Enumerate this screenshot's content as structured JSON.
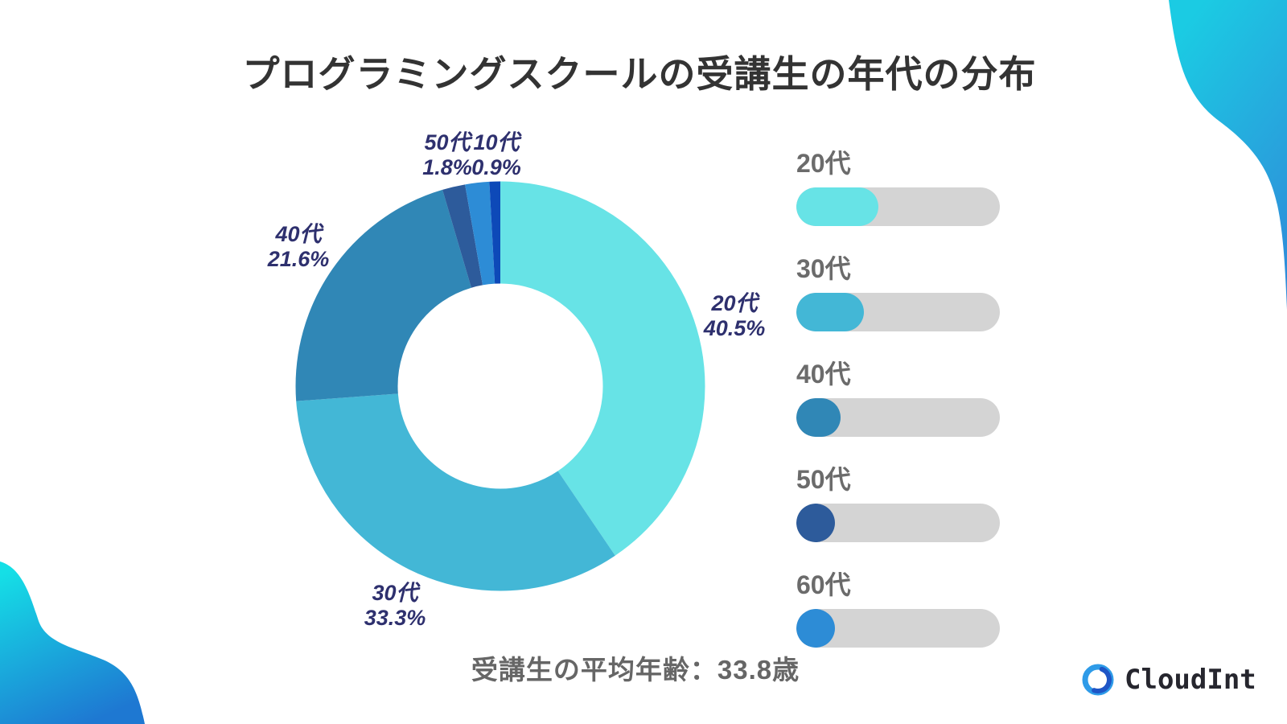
{
  "title": "プログラミングスクールの受講生の年代の分布",
  "average_note": "受講生の平均年齢：33.8歳",
  "brand": {
    "name": "CloudInt"
  },
  "chart_data": {
    "type": "pie",
    "donut": true,
    "direction": "clockwise",
    "start_angle_deg": 0,
    "title": "プログラミングスクールの受講生の年代の分布",
    "unit": "%",
    "slices": [
      {
        "label": "20代",
        "value": 40.5,
        "color": "#67E3E6",
        "labeled": true
      },
      {
        "label": "30代",
        "value": 33.3,
        "color": "#43B7D6",
        "labeled": true
      },
      {
        "label": "40代",
        "value": 21.6,
        "color": "#3087B6",
        "labeled": true
      },
      {
        "label": "50代",
        "value": 1.8,
        "color": "#2D5B9B",
        "labeled": true
      },
      {
        "label": "60代",
        "value": 1.9,
        "color": "#2D8CD6",
        "labeled": false
      },
      {
        "label": "10代",
        "value": 0.9,
        "color": "#0D49B8",
        "labeled": true
      }
    ],
    "legend": {
      "position": "right",
      "track_color": "#D4D4D4",
      "items": [
        {
          "label": "20代",
          "value": 40.5,
          "color": "#67E3E6"
        },
        {
          "label": "30代",
          "value": 33.3,
          "color": "#43B7D6"
        },
        {
          "label": "40代",
          "value": 21.6,
          "color": "#3087B6"
        },
        {
          "label": "50代",
          "value": 1.8,
          "color": "#2D5B9B"
        },
        {
          "label": "60代",
          "value": 1.9,
          "color": "#2D8CD6"
        }
      ]
    },
    "annotation_text_color": "#2E306E"
  },
  "decor": {
    "blob_gradient_start": "#15DFE6",
    "blob_gradient_end": "#1E78D2",
    "logo_ring_light": "#2E9BE8",
    "logo_ring_dark": "#1E55C6"
  }
}
